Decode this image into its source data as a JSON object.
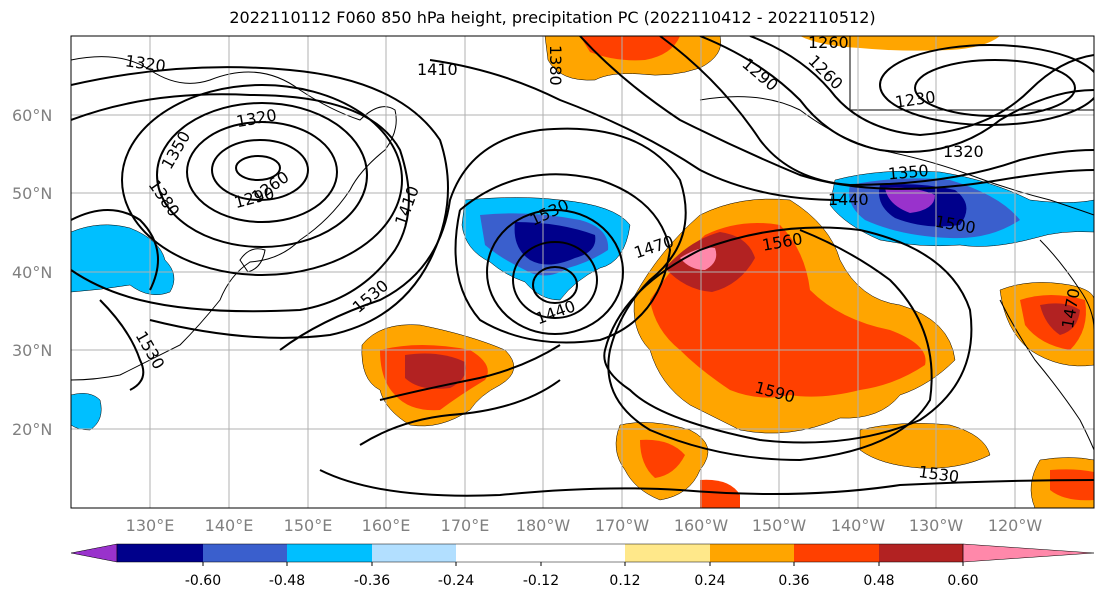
{
  "title": "2022110112 F060 850 hPa height, precipitation PC (2022110412 - 2022110512)",
  "map": {
    "lat_labels": [
      "60°N",
      "50°N",
      "40°N",
      "30°N",
      "20°N"
    ],
    "lon_labels": [
      "130°E",
      "140°E",
      "150°E",
      "160°E",
      "170°E",
      "180°W",
      "170°W",
      "160°W",
      "150°W",
      "140°W",
      "130°W",
      "120°W"
    ],
    "contour_labels": [
      "1320",
      "1410",
      "1350",
      "1380",
      "1320",
      "1260",
      "1290",
      "1410",
      "1530",
      "1530",
      "1440",
      "1470",
      "1560",
      "1590",
      "1530",
      "1290",
      "1260",
      "1230",
      "1320",
      "1350",
      "1440",
      "1500",
      "1470",
      "1530",
      "1260",
      "1380"
    ]
  },
  "colorbar": {
    "colors": [
      "#9932cc",
      "#00008b",
      "#3a5fcd",
      "#00bfff",
      "#b2dfff",
      "#ffffff",
      "#ffffff",
      "#ffe88a",
      "#ffa500",
      "#ff4000",
      "#b22222",
      "#ff88aa"
    ],
    "labels": [
      "-0.60",
      "-0.48",
      "-0.36",
      "-0.24",
      "-0.12",
      "0.12",
      "0.24",
      "0.36",
      "0.48",
      "0.60"
    ]
  }
}
